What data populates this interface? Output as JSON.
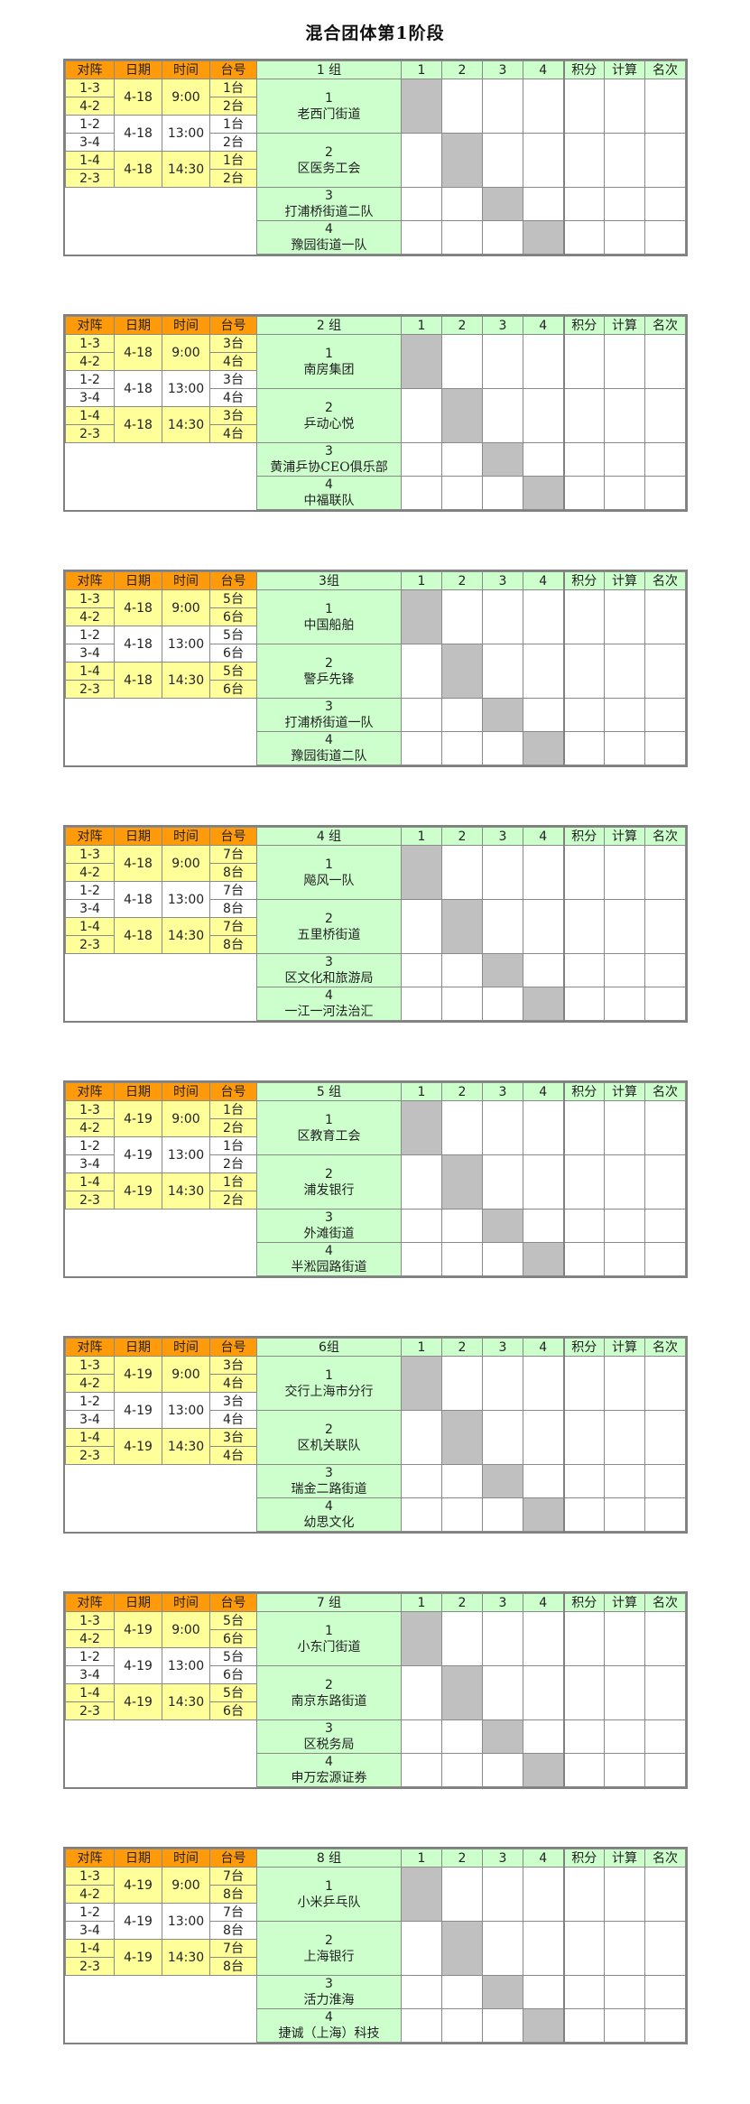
{
  "title": "混合团体第1阶段",
  "headers": {
    "matchup": "对阵",
    "date": "日期",
    "time": "时间",
    "table_no": "台号",
    "cols": [
      "1",
      "2",
      "3",
      "4"
    ],
    "points": "积分",
    "calc": "计算",
    "rank": "名次"
  },
  "colors": {
    "header_orange": "#FF9A0A",
    "schedule_yellow": "#FFFF99",
    "team_green": "#CCFFCC",
    "diagonal_gray": "#C0C0C0",
    "border": "#808080"
  },
  "groups": [
    {
      "label": "1 组",
      "date": "4-18",
      "tables": [
        "1台",
        "2台"
      ],
      "teams": [
        {
          "no": "1",
          "name": "老西门街道"
        },
        {
          "no": "2",
          "name": "区医务工会"
        },
        {
          "no": "3",
          "name": "打浦桥街道二队"
        },
        {
          "no": "4",
          "name": "豫园街道一队"
        }
      ]
    },
    {
      "label": "2 组",
      "date": "4-18",
      "tables": [
        "3台",
        "4台"
      ],
      "teams": [
        {
          "no": "1",
          "name": "南房集团"
        },
        {
          "no": "2",
          "name": "乒动心悦"
        },
        {
          "no": "3",
          "name": "黄浦乒协CEO俱乐部"
        },
        {
          "no": "4",
          "name": "中福联队"
        }
      ]
    },
    {
      "label": "3组",
      "date": "4-18",
      "tables": [
        "5台",
        "6台"
      ],
      "teams": [
        {
          "no": "1",
          "name": "中国船舶"
        },
        {
          "no": "2",
          "name": "警乒先锋"
        },
        {
          "no": "3",
          "name": "打浦桥街道一队"
        },
        {
          "no": "4",
          "name": "豫园街道二队"
        }
      ]
    },
    {
      "label": "4 组",
      "date": "4-18",
      "tables": [
        "7台",
        "8台"
      ],
      "teams": [
        {
          "no": "1",
          "name": "飚风一队"
        },
        {
          "no": "2",
          "name": "五里桥街道"
        },
        {
          "no": "3",
          "name": "区文化和旅游局"
        },
        {
          "no": "4",
          "name": "一江一河法治汇"
        }
      ]
    },
    {
      "label": "5 组",
      "date": "4-19",
      "tables": [
        "1台",
        "2台"
      ],
      "teams": [
        {
          "no": "1",
          "name": "区教育工会"
        },
        {
          "no": "2",
          "name": "浦发银行"
        },
        {
          "no": "3",
          "name": "外滩街道"
        },
        {
          "no": "4",
          "name": "半淞园路街道"
        }
      ]
    },
    {
      "label": "6组",
      "date": "4-19",
      "tables": [
        "3台",
        "4台"
      ],
      "teams": [
        {
          "no": "1",
          "name": "交行上海市分行"
        },
        {
          "no": "2",
          "name": "区机关联队"
        },
        {
          "no": "3",
          "name": "瑞金二路街道"
        },
        {
          "no": "4",
          "name": "幼思文化"
        }
      ]
    },
    {
      "label": "7 组",
      "date": "4-19",
      "tables": [
        "5台",
        "6台"
      ],
      "teams": [
        {
          "no": "1",
          "name": "小东门街道"
        },
        {
          "no": "2",
          "name": "南京东路街道"
        },
        {
          "no": "3",
          "name": "区税务局"
        },
        {
          "no": "4",
          "name": "申万宏源证券"
        }
      ]
    },
    {
      "label": "8 组",
      "date": "4-19",
      "tables": [
        "7台",
        "8台"
      ],
      "teams": [
        {
          "no": "1",
          "name": "小米乒乓队"
        },
        {
          "no": "2",
          "name": "上海银行"
        },
        {
          "no": "3",
          "name": "活力淮海"
        },
        {
          "no": "4",
          "name": "捷诚（上海）科技"
        }
      ]
    }
  ],
  "slots": [
    {
      "time": "9:00",
      "pairs": [
        "1-3",
        "4-2"
      ]
    },
    {
      "time": "13:00",
      "pairs": [
        "1-2",
        "3-4"
      ]
    },
    {
      "time": "14:30",
      "pairs": [
        "1-4",
        "2-3"
      ]
    }
  ]
}
